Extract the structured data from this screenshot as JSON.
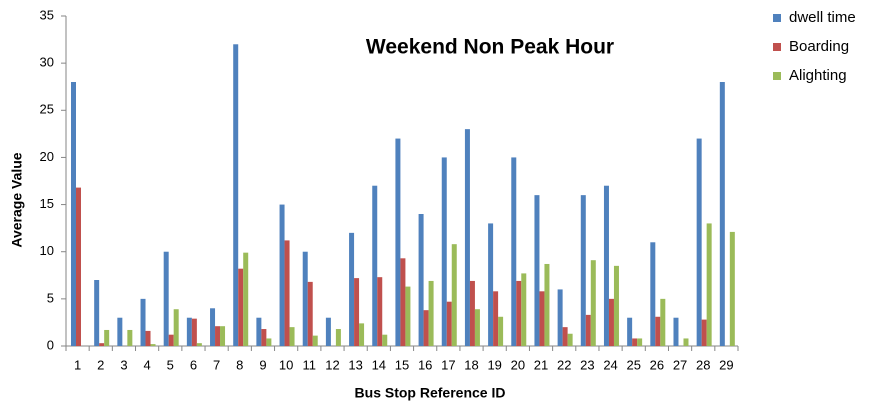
{
  "chart_data": {
    "type": "bar",
    "title": "Weekend Non Peak Hour",
    "x_label": "Bus Stop  Reference ID",
    "y_label": "Average Value",
    "categories": [
      "1",
      "2",
      "3",
      "4",
      "5",
      "6",
      "7",
      "8",
      "9",
      "10",
      "11",
      "12",
      "13",
      "14",
      "15",
      "16",
      "17",
      "18",
      "19",
      "20",
      "21",
      "22",
      "23",
      "24",
      "25",
      "26",
      "27",
      "28",
      "29"
    ],
    "series": [
      {
        "name": "dwell time",
        "color": "#4f81bd",
        "values": [
          28,
          7,
          3,
          5,
          10,
          3,
          4,
          32,
          3,
          15,
          10,
          3,
          12,
          17,
          22,
          14,
          20,
          23,
          13,
          20,
          16,
          6,
          16,
          17,
          3,
          11,
          3,
          22,
          28
        ]
      },
      {
        "name": "Boarding",
        "color": "#c0504d",
        "values": [
          16.8,
          0.3,
          0,
          1.6,
          1.2,
          2.9,
          2.1,
          8.2,
          1.8,
          11.2,
          6.8,
          0,
          7.2,
          7.3,
          9.3,
          3.8,
          4.7,
          6.9,
          5.8,
          6.9,
          5.8,
          2,
          3.3,
          5,
          0.8,
          3.1,
          0,
          2.8,
          0
        ]
      },
      {
        "name": "Alighting",
        "color": "#9bbb59",
        "values": [
          0,
          1.7,
          1.7,
          0.2,
          3.9,
          0.3,
          2.1,
          9.9,
          0.8,
          2,
          1.1,
          1.8,
          2.4,
          1.2,
          6.3,
          6.9,
          10.8,
          3.9,
          3.1,
          7.7,
          8.7,
          1.3,
          9.1,
          8.5,
          0.8,
          5,
          0.8,
          13,
          12.1
        ]
      }
    ],
    "ylim": [
      0,
      35
    ],
    "yticks": [
      0,
      5,
      10,
      15,
      20,
      25,
      30,
      35
    ],
    "grid": false,
    "legend": "top-right"
  }
}
